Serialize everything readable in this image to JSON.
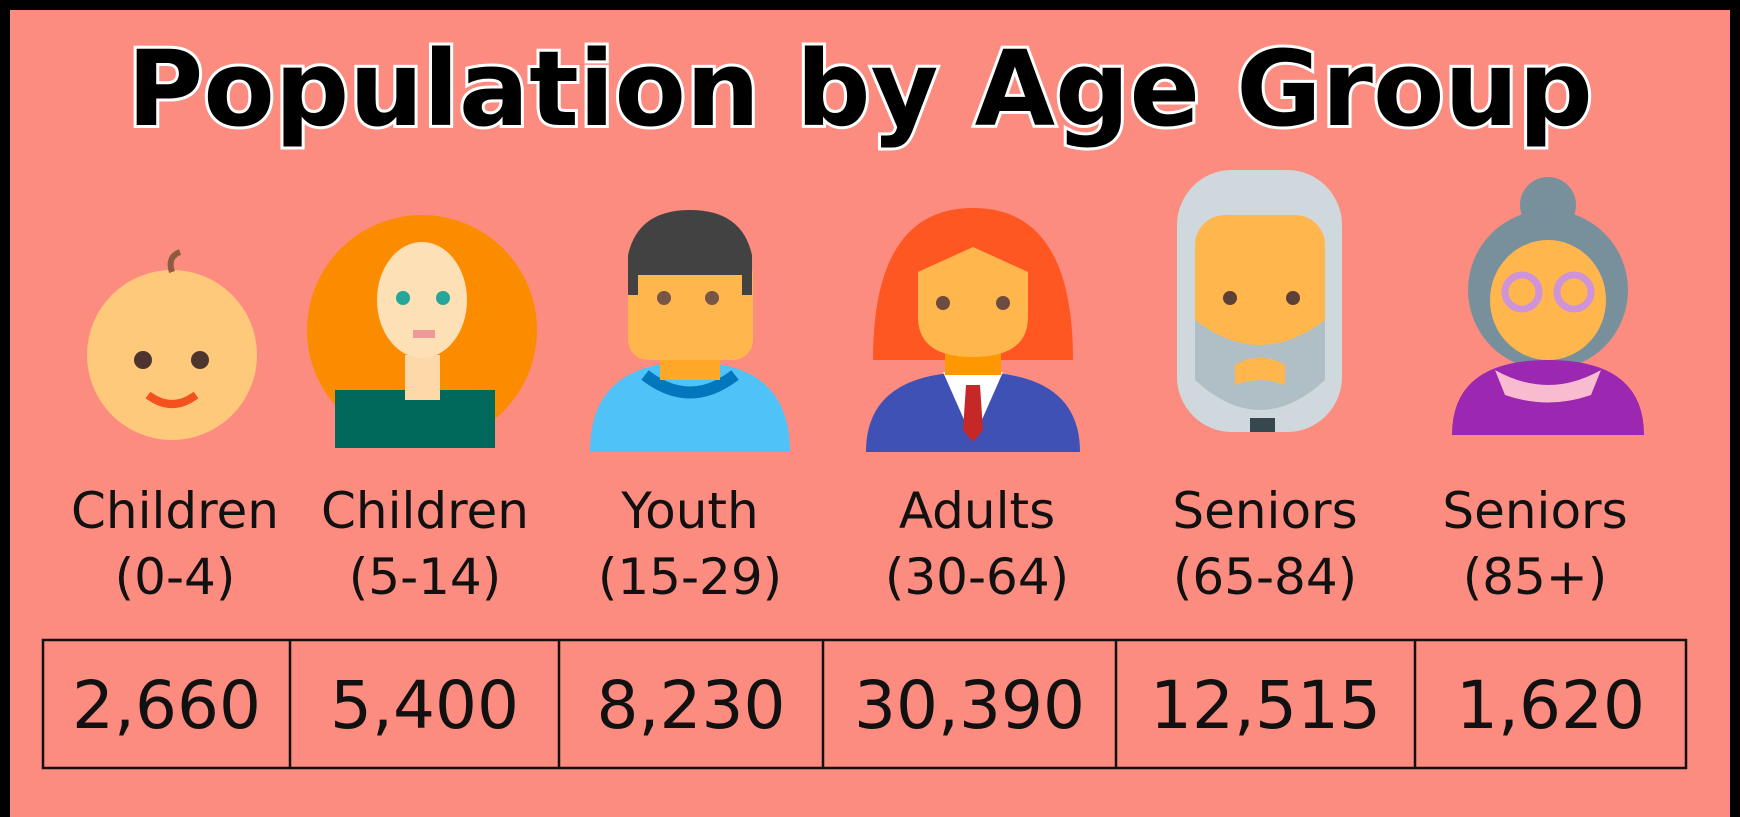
{
  "header": {
    "title": "Population by Age Group"
  },
  "groups": [
    {
      "name": "Children",
      "range": "(0-4)",
      "value": "2,660"
    },
    {
      "name": "Children",
      "range": "(5-14)",
      "value": "5,400"
    },
    {
      "name": "Youth",
      "range": "(15-29)",
      "value": "8,230"
    },
    {
      "name": "Adults",
      "range": "(30-64)",
      "value": "30,390"
    },
    {
      "name": "Seniors",
      "range": "(65-84)",
      "value": "12,515"
    },
    {
      "name": "Seniors",
      "range": "(85+)",
      "value": "1,620"
    }
  ]
}
